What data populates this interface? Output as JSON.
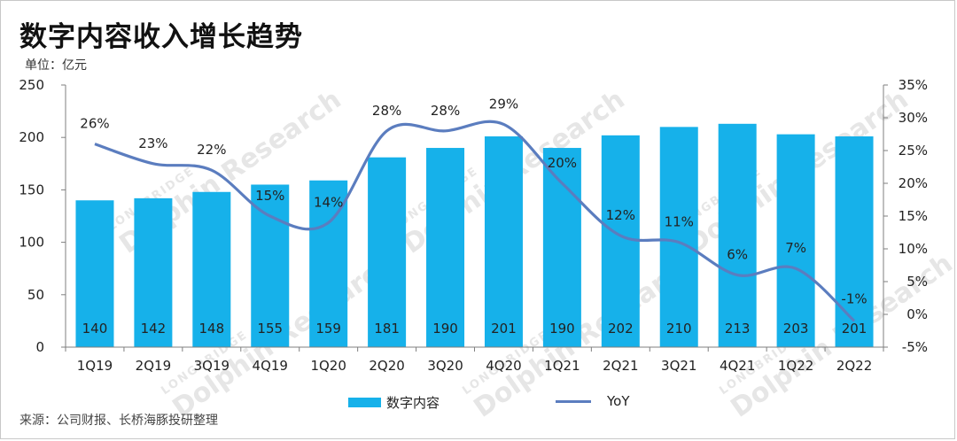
{
  "title": "数字内容收入增长趋势",
  "unit_label": "单位：亿元",
  "source_note": "来源：公司财报、长桥海豚投研整理",
  "watermark": {
    "brand": "LONGBRIDGE",
    "name": "Dolphin Research"
  },
  "colors": {
    "bar": "#16b1ea",
    "line": "#5b7dbf",
    "text": "#222222",
    "axis": "#7f7f7f"
  },
  "chart_data": {
    "type": "bar",
    "categories": [
      "1Q19",
      "2Q19",
      "3Q19",
      "4Q19",
      "1Q20",
      "2Q20",
      "3Q20",
      "4Q20",
      "1Q21",
      "2Q21",
      "3Q21",
      "4Q21",
      "1Q22",
      "2Q22"
    ],
    "series": [
      {
        "name": "数字内容",
        "type": "bar",
        "axis": "left",
        "values": [
          140,
          142,
          148,
          155,
          159,
          181,
          190,
          201,
          190,
          202,
          210,
          213,
          203,
          201
        ]
      },
      {
        "name": "YoY",
        "type": "line",
        "axis": "right",
        "values": [
          26,
          23,
          22,
          15,
          14,
          28,
          28,
          29,
          20,
          12,
          11,
          6,
          7,
          -1
        ],
        "labels": [
          "26%",
          "23%",
          "22%",
          "15%",
          "14%",
          "28%",
          "28%",
          "29%",
          "20%",
          "12%",
          "11%",
          "6%",
          "7%",
          "-1%"
        ]
      }
    ],
    "y_left": {
      "min": 0,
      "max": 250,
      "ticks": [
        "0",
        "50",
        "100",
        "150",
        "200",
        "250"
      ]
    },
    "y_right": {
      "min": -5,
      "max": 35,
      "ticks": [
        "-5%",
        "0%",
        "5%",
        "10%",
        "15%",
        "20%",
        "25%",
        "30%",
        "35%"
      ]
    },
    "grid": false,
    "legend": {
      "position": "bottom",
      "items": [
        "数字内容",
        "YoY"
      ]
    }
  }
}
